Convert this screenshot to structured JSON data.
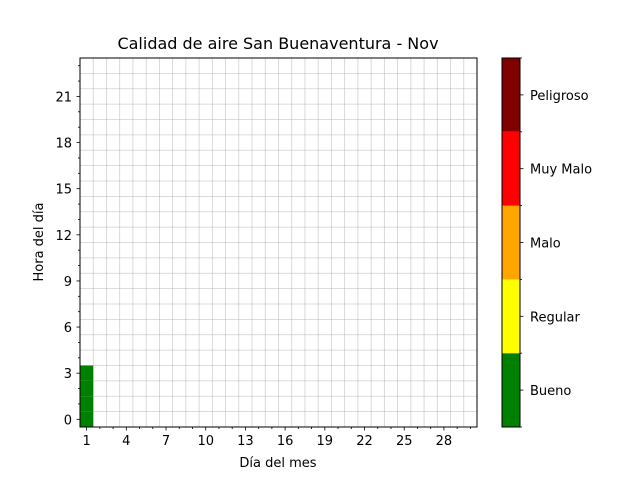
{
  "chart_data": {
    "type": "heatmap",
    "title": "Calidad de aire San Buenaventura - Nov",
    "xlabel": "Día del mes",
    "ylabel": "Hora del día",
    "xlim": [
      0.5,
      30.5
    ],
    "ylim": [
      -0.5,
      23.5
    ],
    "x_ticks": [
      1,
      4,
      7,
      10,
      13,
      16,
      19,
      22,
      25,
      28
    ],
    "y_ticks": [
      0,
      3,
      6,
      9,
      12,
      15,
      18,
      21
    ],
    "grid": true,
    "colorbar": {
      "categories": [
        "Bueno",
        "Regular",
        "Malo",
        "Muy Malo",
        "Peligroso"
      ],
      "colors": [
        "#008000",
        "#ffff00",
        "#ffa500",
        "#ff0000",
        "#800000"
      ]
    },
    "cells": [
      {
        "day": 1,
        "hour": 0,
        "category": "Bueno"
      },
      {
        "day": 1,
        "hour": 1,
        "category": "Bueno"
      },
      {
        "day": 1,
        "hour": 2,
        "category": "Bueno"
      },
      {
        "day": 1,
        "hour": 3,
        "category": "Bueno"
      }
    ]
  }
}
